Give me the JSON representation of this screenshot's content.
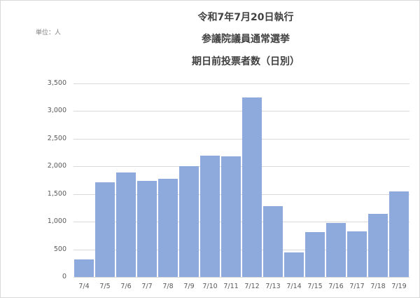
{
  "chart_data": {
    "type": "bar",
    "title": "令和7年7月20日執行 参議院議員通常選挙 期日前投票者数（日別）",
    "title_lines": [
      "令和7年7月20日執行",
      "参議院議員通常選挙",
      "期日前投票者数（日別）"
    ],
    "unit_label": "単位：人",
    "xlabel": "",
    "ylabel": "",
    "categories": [
      "7/4",
      "7/5",
      "7/6",
      "7/7",
      "7/8",
      "7/9",
      "7/10",
      "7/11",
      "7/12",
      "7/13",
      "7/14",
      "7/15",
      "7/16",
      "7/17",
      "7/18",
      "7/19"
    ],
    "values": [
      314,
      1715,
      1884,
      1741,
      1779,
      2004,
      2198,
      2185,
      3249,
      1283,
      445,
      817,
      975,
      830,
      1147,
      1546
    ],
    "ylim": [
      0,
      3500
    ],
    "yticks": [
      0,
      500,
      1000,
      1500,
      2000,
      2500,
      3000,
      3500
    ],
    "ytick_labels": [
      "0",
      "500",
      "1,000",
      "1,500",
      "2,000",
      "2,500",
      "3,000",
      "3,500"
    ],
    "grid": true,
    "legend": "none",
    "bar_color": "#8EA9DB"
  }
}
